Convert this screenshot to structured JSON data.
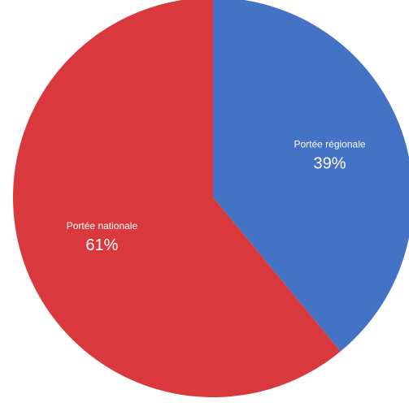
{
  "chart_data": {
    "type": "pie",
    "categories": [
      "Portée régionale",
      "Portée nationale"
    ],
    "values": [
      39,
      61
    ],
    "value_labels": [
      "39%",
      "61%"
    ],
    "colors": [
      "#4472C4",
      "#D9393D"
    ],
    "start": "12 o'clock",
    "direction": "clockwise",
    "legend": "none"
  }
}
